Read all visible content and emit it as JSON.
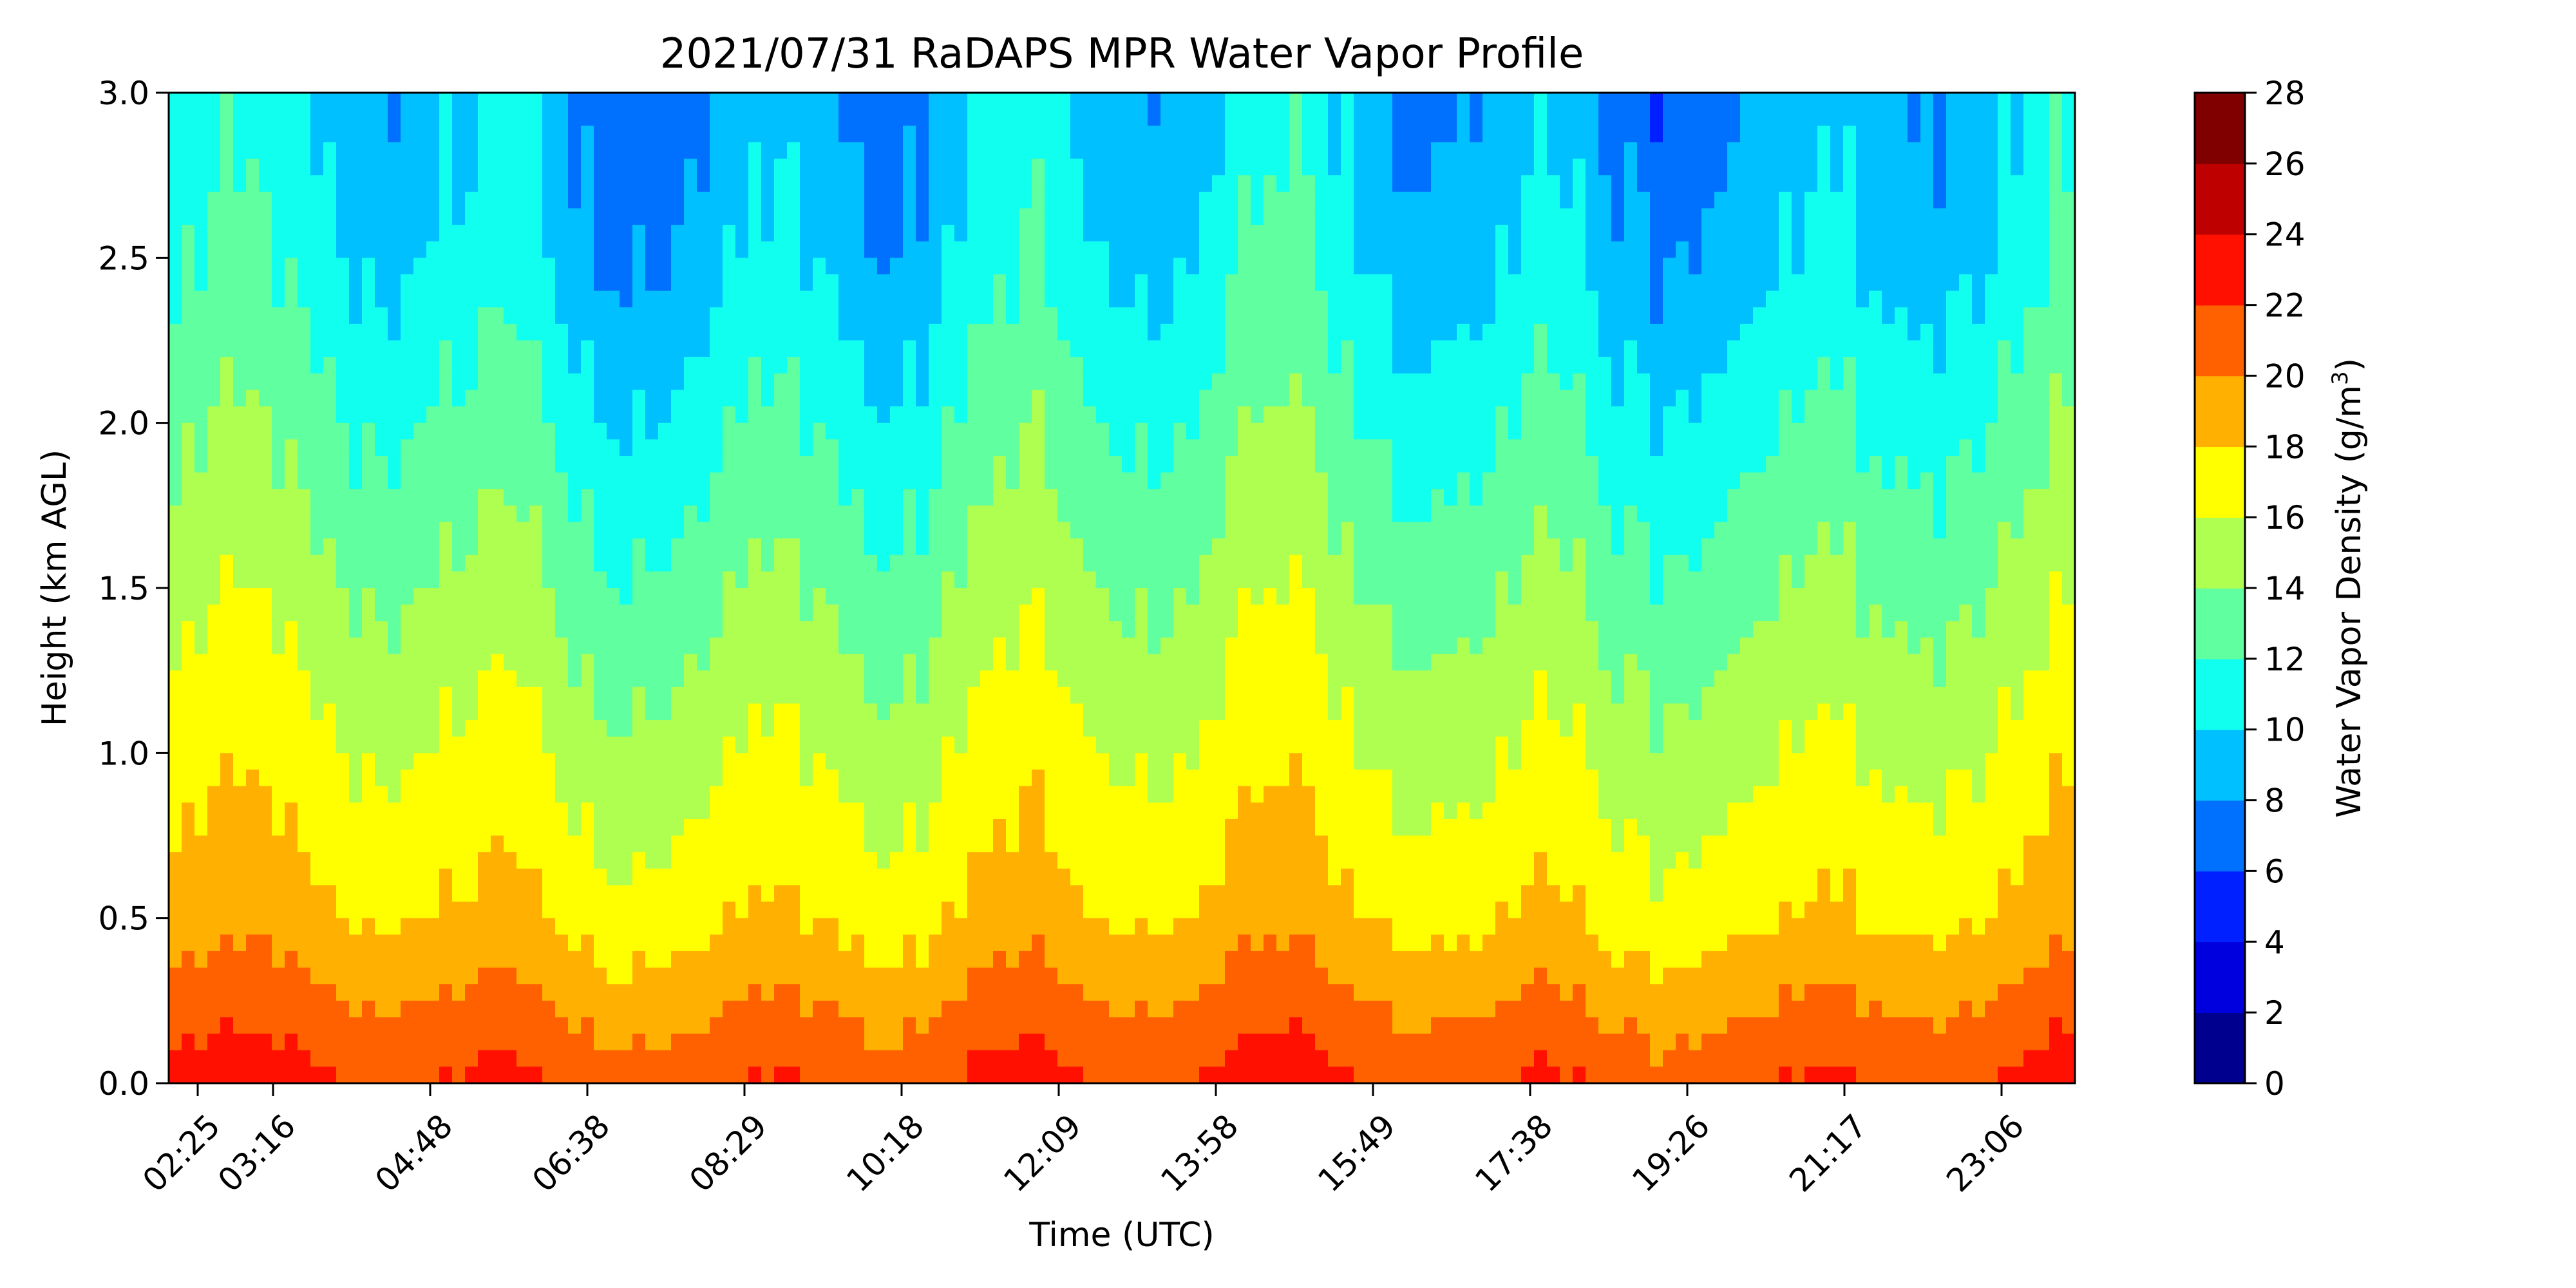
{
  "chart_data": {
    "type": "heatmap",
    "subtype": "filled-contour",
    "title": "2021/07/31 RaDAPS MPR Water Vapor Profile",
    "xlabel": "Time (UTC)",
    "ylabel": "Height (km AGL)",
    "x_ticks": [
      "02:25",
      "03:16",
      "04:48",
      "06:38",
      "08:29",
      "10:18",
      "12:09",
      "13:58",
      "15:49",
      "17:38",
      "19:26",
      "21:17",
      "23:06"
    ],
    "y_ticks": [
      "0.0",
      "0.5",
      "1.0",
      "1.5",
      "2.0",
      "2.5",
      "3.0"
    ],
    "ylim": [
      0,
      3.0
    ],
    "colorbar": {
      "label": "Water Vapor Density (g/m",
      "label_superscript": "3",
      "label_suffix": ")",
      "ticks": [
        "0",
        "2",
        "4",
        "6",
        "8",
        "10",
        "12",
        "14",
        "16",
        "18",
        "20",
        "22",
        "24",
        "26",
        "28"
      ],
      "levels": [
        0,
        2,
        4,
        6,
        8,
        10,
        12,
        14,
        16,
        18,
        20,
        22,
        24,
        26,
        28
      ],
      "colors": [
        "#00008f",
        "#0000df",
        "#0020ff",
        "#0070ff",
        "#00c0ff",
        "#10ffef",
        "#60ff9f",
        "#afff50",
        "#ffff00",
        "#ffb000",
        "#ff6000",
        "#ff1000",
        "#bf0000",
        "#800000"
      ]
    },
    "profile_levels_at_heights": {
      "heights_km": [
        0.0,
        0.25,
        0.5,
        1.0,
        1.5,
        2.0,
        2.5,
        2.9
      ],
      "typical_density_g_m3": [
        22,
        20,
        18,
        16,
        14,
        12,
        10,
        9
      ]
    }
  }
}
